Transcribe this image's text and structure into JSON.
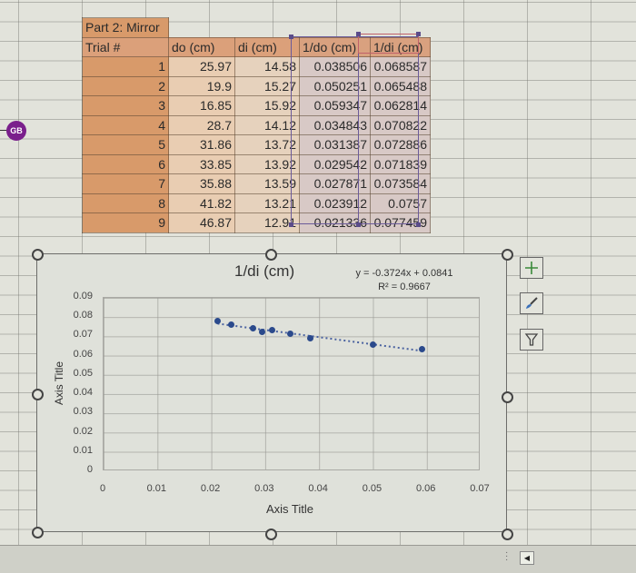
{
  "sheet": {
    "table": {
      "title": "Part 2: Mirror",
      "headers": [
        "Trial #",
        "do (cm)",
        "di (cm)",
        "1/do (cm)",
        "1/di (cm)"
      ],
      "rows": [
        [
          "1",
          "25.97",
          "14.58",
          "0.038506",
          "0.068587"
        ],
        [
          "2",
          "19.9",
          "15.27",
          "0.050251",
          "0.065488"
        ],
        [
          "3",
          "16.85",
          "15.92",
          "0.059347",
          "0.062814"
        ],
        [
          "4",
          "28.7",
          "14.12",
          "0.034843",
          "0.070822"
        ],
        [
          "5",
          "31.86",
          "13.72",
          "0.031387",
          "0.072886"
        ],
        [
          "6",
          "33.85",
          "13.92",
          "0.029542",
          "0.071839"
        ],
        [
          "7",
          "35.88",
          "13.59",
          "0.027871",
          "0.073584"
        ],
        [
          "8",
          "41.82",
          "13.21",
          "0.023912",
          "0.0757"
        ],
        [
          "9",
          "46.87",
          "12.91",
          "0.021336",
          "0.077459"
        ]
      ]
    },
    "avatar_initials": "GB",
    "avatar_color": "#7a1f8c"
  },
  "chart_buttons": {
    "add_element": "chart-elements-icon",
    "style": "chart-styles-icon",
    "filter": "chart-filters-icon"
  },
  "chart_data": {
    "type": "scatter",
    "title": "1/di (cm)",
    "xlabel": "Axis Title",
    "ylabel": "Axis Title",
    "xlim": [
      0,
      0.07
    ],
    "ylim": [
      0,
      0.09
    ],
    "x_ticks": [
      "0",
      "0.01",
      "0.02",
      "0.03",
      "0.04",
      "0.05",
      "0.06",
      "0.07"
    ],
    "y_ticks": [
      "0",
      "0.01",
      "0.02",
      "0.03",
      "0.04",
      "0.05",
      "0.06",
      "0.07",
      "0.08",
      "0.09"
    ],
    "grid": true,
    "legend": "none",
    "series": [
      {
        "name": "1/di (cm)",
        "color": "#2b4a8c",
        "x": [
          0.038506,
          0.050251,
          0.059347,
          0.034843,
          0.031387,
          0.029542,
          0.027871,
          0.023912,
          0.021336
        ],
        "y": [
          0.068587,
          0.065488,
          0.062814,
          0.070822,
          0.072886,
          0.071839,
          0.073584,
          0.0757,
          0.077459
        ]
      }
    ],
    "trendline": {
      "type": "linear",
      "style": "dotted",
      "equation": "y = -0.3724x + 0.0841",
      "r_squared": "R² = 0.9667",
      "slope": -0.3724,
      "intercept": 0.0841
    }
  }
}
